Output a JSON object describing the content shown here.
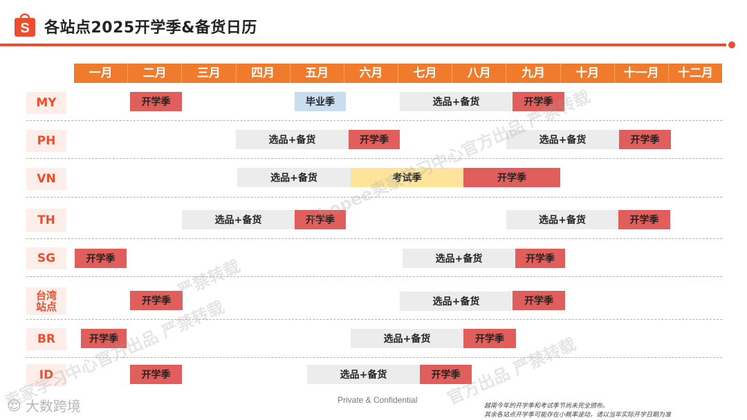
{
  "title": "各站点2025开学季&备货日历",
  "brand_logo_letter": "S",
  "months": [
    "一月",
    "二月",
    "三月",
    "四月",
    "五月",
    "六月",
    "七月",
    "八月",
    "九月",
    "十月",
    "十一月",
    "十二月"
  ],
  "rows": [
    {
      "label": "MY",
      "bars": [
        {
          "text": "开学季",
          "color": "red"
        },
        {
          "text": "毕业季",
          "color": "blue"
        },
        {
          "text": "选品+备货",
          "color": "gray"
        },
        {
          "text": "开学季",
          "color": "red"
        }
      ]
    },
    {
      "label": "PH",
      "bars": [
        {
          "text": "选品+备货",
          "color": "gray"
        },
        {
          "text": "开学季",
          "color": "red"
        },
        {
          "text": "选品+备货",
          "color": "gray"
        },
        {
          "text": "开学季",
          "color": "red"
        }
      ]
    },
    {
      "label": "VN",
      "bars": [
        {
          "text": "选品+备货",
          "color": "gray"
        },
        {
          "text": "考试季",
          "color": "yellow"
        },
        {
          "text": "开学季",
          "color": "red"
        }
      ]
    },
    {
      "label": "TH",
      "bars": [
        {
          "text": "选品+备货",
          "color": "gray"
        },
        {
          "text": "开学季",
          "color": "red"
        },
        {
          "text": "选品+备货",
          "color": "gray"
        },
        {
          "text": "开学季",
          "color": "red"
        }
      ]
    },
    {
      "label": "SG",
      "bars": [
        {
          "text": "开学季",
          "color": "red"
        },
        {
          "text": "选品+备货",
          "color": "gray"
        },
        {
          "text": "开学季",
          "color": "red"
        }
      ]
    },
    {
      "label": "台湾\n站点",
      "bars": [
        {
          "text": "开学季",
          "color": "red"
        },
        {
          "text": "选品+备货",
          "color": "gray"
        },
        {
          "text": "开学季",
          "color": "red"
        }
      ]
    },
    {
      "label": "BR",
      "bars": [
        {
          "text": "开学季",
          "color": "red"
        },
        {
          "text": "选品+备货",
          "color": "gray"
        },
        {
          "text": "开学季",
          "color": "red"
        }
      ]
    },
    {
      "label": "ID",
      "bars": [
        {
          "text": "开学季",
          "color": "red"
        },
        {
          "text": "选品+备货",
          "color": "gray"
        },
        {
          "text": "开学季",
          "color": "red"
        }
      ]
    }
  ],
  "watermarks": [
    "shopee卖家学习中心官方出品 严禁转载",
    "严禁转载",
    "官方出品 严禁转载",
    "卖家学习中心官方出品 严禁转载"
  ],
  "footer": {
    "brand": "大数跨境",
    "confidential": "Private & Confidential",
    "note_line1": "越南今年的开学季和考试季节尚未完全颁布。",
    "note_line2": "其余各站点开学季可能存在小概率波动，请以当年实际开学日期为准"
  },
  "colors": {
    "accent": "#ee4d2d",
    "header": "#f07b2c",
    "red": "#e05f5c",
    "gray": "#ececec",
    "blue": "#c9ddf1",
    "yellow": "#fde49b"
  }
}
